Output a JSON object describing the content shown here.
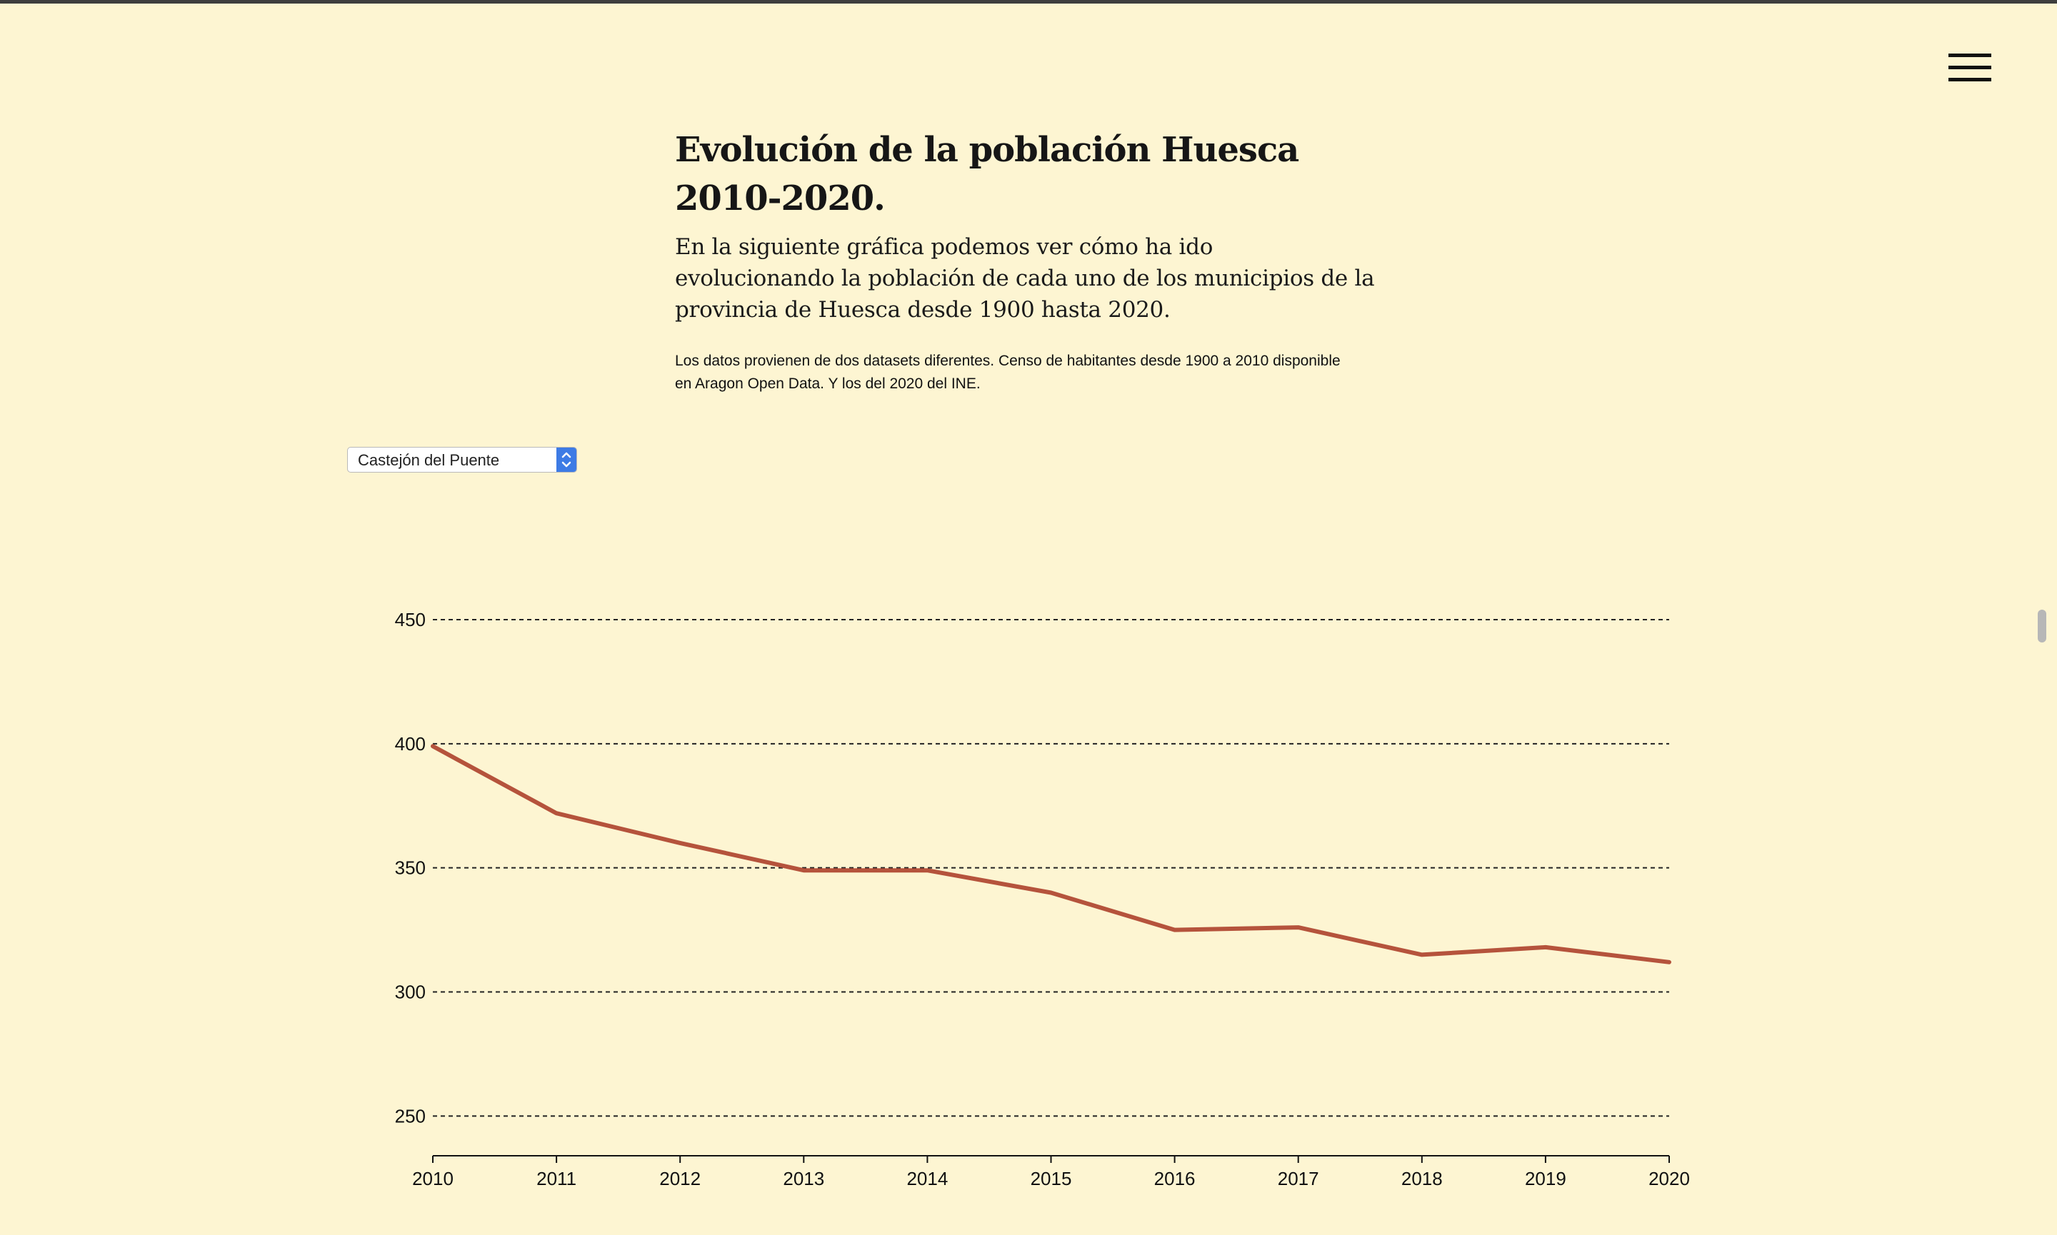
{
  "header": {
    "title": "Evolución de la población Huesca 2010-2020.",
    "lead": "En la siguiente gráfica podemos ver cómo ha ido evolucionando la población de cada uno de los municipios de la provincia de Huesca desde 1900 hasta 2020.",
    "note": "Los datos provienen de dos datasets diferentes. Censo de habitantes desde 1900 a 2010 disponible en Aragon Open Data. Y los del 2020 del INE."
  },
  "controls": {
    "municipio_select": {
      "value": "Castejón del Puente"
    }
  },
  "colors": {
    "background": "#fdf5d2",
    "line": "#b5533c"
  },
  "icons": {
    "menu": "hamburger-menu-icon",
    "select_arrows": "chevron-up-down-icon"
  },
  "chart_data": {
    "type": "line",
    "title": "",
    "xlabel": "",
    "ylabel": "",
    "x": [
      2010,
      2011,
      2012,
      2013,
      2014,
      2015,
      2016,
      2017,
      2018,
      2019,
      2020
    ],
    "series": [
      {
        "values": [
          399,
          372,
          360,
          349,
          349,
          340,
          325,
          326,
          315,
          318,
          312
        ]
      }
    ],
    "ylim": [
      234,
      450
    ],
    "yticks": [
      250,
      300,
      350,
      400,
      450
    ],
    "grid": "horizontal-dashed",
    "legend": "none"
  }
}
